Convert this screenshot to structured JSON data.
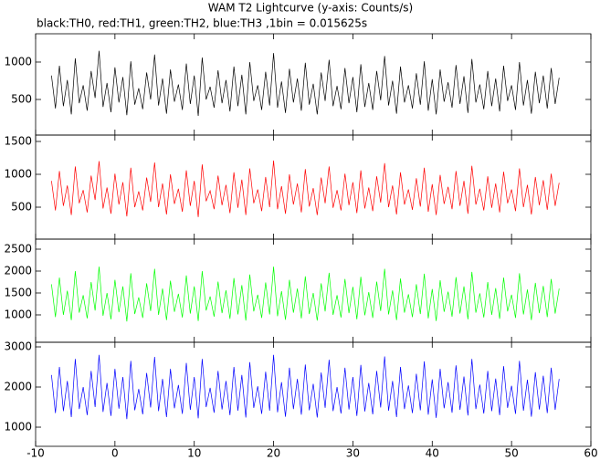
{
  "chart_data": {
    "type": "line",
    "title": "WAM T2 Lightcurve (y-axis: Counts/s)",
    "subtitle": "black:TH0, red:TH1, green:TH2, blue:TH3 ,1bin = 0.015625s",
    "xlim": [
      -10,
      60
    ],
    "xticks": [
      -10,
      0,
      10,
      20,
      30,
      40,
      50,
      60
    ],
    "x": [
      -8,
      -7.5,
      -7,
      -6.5,
      -6,
      -5.5,
      -5,
      -4.5,
      -4,
      -3.5,
      -3,
      -2.5,
      -2,
      -1.5,
      -1,
      -0.5,
      0,
      0.5,
      1,
      1.5,
      2,
      2.5,
      3,
      3.5,
      4,
      4.5,
      5,
      5.5,
      6,
      6.5,
      7,
      7.5,
      8,
      8.5,
      9,
      9.5,
      10,
      10.5,
      11,
      11.5,
      12,
      12.5,
      13,
      13.5,
      14,
      14.5,
      15,
      15.5,
      16,
      16.5,
      17,
      17.5,
      18,
      18.5,
      19,
      19.5,
      20,
      20.5,
      21,
      21.5,
      22,
      22.5,
      23,
      23.5,
      24,
      24.5,
      25,
      25.5,
      26,
      26.5,
      27,
      27.5,
      28,
      28.5,
      29,
      29.5,
      30,
      30.5,
      31,
      31.5,
      32,
      32.5,
      33,
      33.5,
      34,
      34.5,
      35,
      35.5,
      36,
      36.5,
      37,
      37.5,
      38,
      38.5,
      39,
      39.5,
      40,
      40.5,
      41,
      41.5,
      42,
      42.5,
      43,
      43.5,
      44,
      44.5,
      45,
      45.5,
      46,
      46.5,
      47,
      47.5,
      48,
      48.5,
      49,
      49.5,
      50,
      50.5,
      51,
      51.5,
      52,
      52.5,
      53,
      53.5,
      54,
      54.5,
      55,
      55.5,
      56
    ],
    "panels": [
      {
        "ylim": [
          24,
          1378
        ],
        "yticks": [
          500,
          1000
        ],
        "series": [
          {
            "color": "#000000",
            "values": [
              820,
              380,
              950,
              410,
              760,
              300,
              1050,
              450,
              690,
              350,
              880,
              520,
              1150,
              400,
              720,
              330,
              930,
              460,
              800,
              290,
              1010,
              430,
              650,
              370,
              860,
              500,
              1100,
              420,
              780,
              310,
              900,
              470,
              700,
              360,
              980,
              440,
              820,
              280,
              1060,
              500,
              670,
              390,
              890,
              450,
              760,
              340,
              940,
              410,
              830,
              300,
              1000,
              480,
              690,
              360,
              870,
              420,
              1120,
              390,
              740,
              320,
              910,
              460,
              780,
              350,
              990,
              430,
              710,
              300,
              860,
              480,
              1030,
              410,
              680,
              370,
              920,
              450,
              800,
              330,
              970,
              400,
              720,
              360,
              880,
              490,
              1080,
              420,
              750,
              310,
              940,
              460,
              690,
              380,
              850,
              430,
              1010,
              350,
              770,
              300,
              900,
              470,
              730,
              390,
              960,
              440,
              810,
              320,
              1040,
              460,
              700,
              370,
              880,
              410,
              780,
              340,
              950,
              480,
              690,
              360,
              1000,
              420,
              760,
              310,
              870,
              450,
              820,
              380,
              920,
              440,
              790
            ]
          }
        ]
      },
      {
        "ylim": [
          14,
          1597
        ],
        "yticks": [
          500,
          1000,
          1500
        ],
        "series": [
          {
            "color": "#ff0000",
            "values": [
              900,
              450,
              1050,
              520,
              830,
              380,
              1120,
              560,
              760,
              420,
              980,
              610,
              1200,
              480,
              800,
              400,
              1010,
              540,
              880,
              360,
              1100,
              500,
              740,
              450,
              950,
              580,
              1180,
              500,
              860,
              390,
              1000,
              550,
              780,
              430,
              1060,
              520,
              900,
              350,
              1150,
              590,
              750,
              470,
              980,
              530,
              840,
              410,
              1030,
              490,
              920,
              380,
              1090,
              560,
              770,
              440,
              960,
              500,
              1210,
              470,
              820,
              400,
              1000,
              540,
              860,
              420,
              1080,
              510,
              790,
              380,
              950,
              560,
              1120,
              490,
              760,
              450,
              1010,
              530,
              880,
              410,
              1060,
              480,
              800,
              440,
              970,
              570,
              1170,
              500,
              830,
              390,
              1030,
              540,
              770,
              460,
              940,
              510,
              1100,
              430,
              850,
              380,
              990,
              550,
              810,
              470,
              1050,
              520,
              900,
              400,
              1130,
              540,
              780,
              450,
              970,
              490,
              860,
              420,
              1040,
              560,
              770,
              440,
              1090,
              500,
              840,
              390,
              960,
              530,
              910,
              460,
              1010,
              520,
              870
            ]
          }
        ]
      },
      {
        "ylim": [
          375,
          2729
        ],
        "yticks": [
          1000,
          1500,
          2000,
          2500
        ],
        "series": [
          {
            "color": "#00ff00",
            "values": [
              1700,
              950,
              1850,
              1000,
              1550,
              880,
              2000,
              1050,
              1450,
              920,
              1750,
              1100,
              2100,
              980,
              1500,
              900,
              1800,
              1060,
              1650,
              850,
              1950,
              1020,
              1400,
              930,
              1720,
              1090,
              2050,
              1000,
              1600,
              880,
              1780,
              1070,
              1480,
              940,
              1900,
              1030,
              1650,
              860,
              2000,
              1100,
              1420,
              960,
              1760,
              1040,
              1560,
              910,
              1840,
              1010,
              1680,
              870,
              1920,
              1080,
              1460,
              930,
              1740,
              1010,
              2100,
              970,
              1540,
              890,
              1800,
              1050,
              1600,
              920,
              1880,
              1020,
              1500,
              870,
              1720,
              1080,
              1960,
              1000,
              1450,
              940,
              1820,
              1040,
              1640,
              900,
              1870,
              990,
              1520,
              930,
              1760,
              1090,
              2050,
              1010,
              1560,
              880,
              1830,
              1050,
              1470,
              950,
              1700,
              1020,
              1940,
              920,
              1590,
              860,
              1790,
              1070,
              1530,
              960,
              1860,
              1030,
              1650,
              900,
              1980,
              1050,
              1490,
              940,
              1750,
              1000,
              1610,
              910,
              1850,
              1080,
              1460,
              930,
              1950,
              1010,
              1580,
              880,
              1730,
              1040,
              1660,
              950,
              1820,
              1030,
              1600
            ]
          }
        ]
      },
      {
        "ylim": [
          523,
          3114
        ],
        "yticks": [
          1000,
          2000,
          3000
        ],
        "series": [
          {
            "color": "#0000ff",
            "values": [
              2300,
              1350,
              2500,
              1400,
              2150,
              1250,
              2700,
              1450,
              2000,
              1300,
              2400,
              1500,
              2800,
              1380,
              2100,
              1280,
              2450,
              1460,
              2250,
              1200,
              2650,
              1420,
              1950,
              1320,
              2350,
              1490,
              2750,
              1400,
              2200,
              1250,
              2450,
              1470,
              2050,
              1330,
              2600,
              1430,
              2250,
              1220,
              2700,
              1500,
              1980,
              1360,
              2400,
              1440,
              2150,
              1300,
              2500,
              1410,
              2300,
              1240,
              2620,
              1480,
              2020,
              1330,
              2380,
              1410,
              2800,
              1370,
              2120,
              1260,
              2480,
              1450,
              2200,
              1310,
              2560,
              1420,
              2080,
              1240,
              2360,
              1480,
              2680,
              1400,
              2000,
              1340,
              2480,
              1440,
              2250,
              1280,
              2550,
              1390,
              2100,
              1320,
              2400,
              1490,
              2760,
              1410,
              2150,
              1250,
              2500,
              1450,
              2040,
              1350,
              2330,
              1420,
              2640,
              1310,
              2190,
              1230,
              2450,
              1470,
              2120,
              1360,
              2540,
              1430,
              2260,
              1290,
              2700,
              1450,
              2060,
              1340,
              2400,
              1400,
              2210,
              1300,
              2520,
              1480,
              2030,
              1330,
              2650,
              1410,
              2180,
              1260,
              2370,
              1440,
              2280,
              1350,
              2480,
              1430,
              2200
            ]
          }
        ]
      }
    ]
  }
}
